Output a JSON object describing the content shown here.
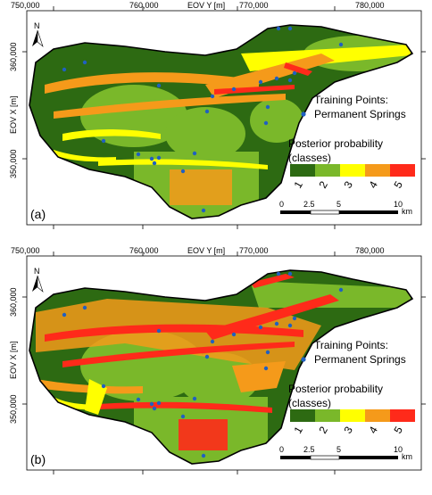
{
  "axes": {
    "x_ticks": [
      "750,000",
      "760,000",
      "770,000",
      "780,000"
    ],
    "x_label": "EOV Y [m]",
    "y_ticks": [
      "360,000",
      "350,000"
    ],
    "y_label": "EOV X [m]"
  },
  "north_label": "N",
  "legend": {
    "training_line1": "Training Points:",
    "training_line2": "Permanent Springs",
    "posterior_line1": "Posterior probability",
    "posterior_line2": "(classes)",
    "classes": [
      "1",
      "2",
      "3",
      "4",
      "5"
    ],
    "class_colors": [
      "#2d6a12",
      "#7ab82a",
      "#ffff00",
      "#f59a1a",
      "#ff2a1a"
    ]
  },
  "scalebar": {
    "labels": [
      "0",
      "2.5",
      "5",
      "10"
    ],
    "unit": "km"
  },
  "panels": [
    {
      "id": "a",
      "label": "(a)"
    },
    {
      "id": "b",
      "label": "(b)"
    }
  ],
  "colors": {
    "spring_point": "#2060c0",
    "outline": "#000000"
  }
}
